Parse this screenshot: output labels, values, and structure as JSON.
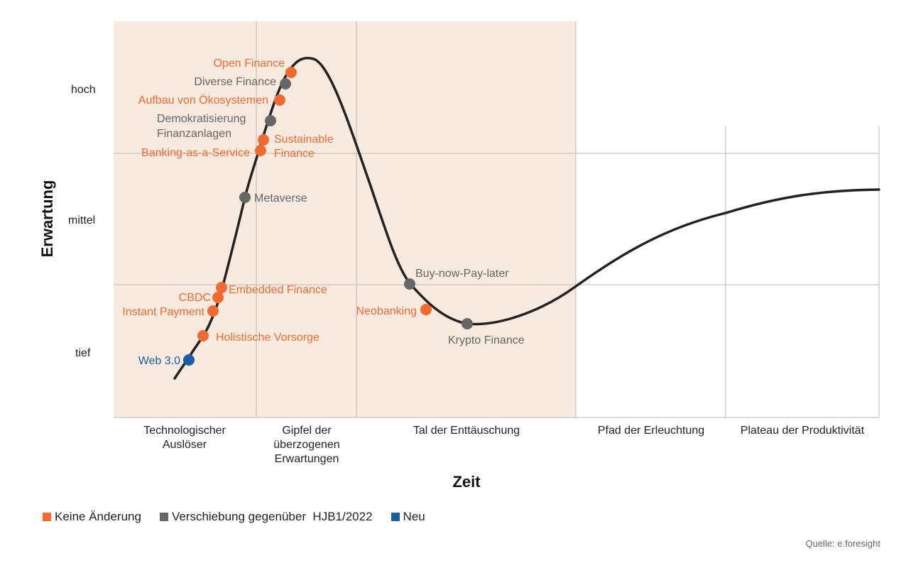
{
  "chart_data": {
    "type": "hype-cycle",
    "xlabel": "Zeit",
    "ylabel": "Erwartung",
    "y_levels": [
      "hoch",
      "mittel",
      "tief"
    ],
    "phases": [
      "Technologischer Auslöser",
      "Gipfel der überzogenen Erwartungen",
      "Tal der Enttäuschung",
      "Pfad der Erleuchtung",
      "Plateau der Produktivität"
    ],
    "points": [
      {
        "name": "Web 3.0",
        "status": "Neu"
      },
      {
        "name": "Holistische Vorsorge",
        "status": "Keine Änderung"
      },
      {
        "name": "Instant Payment",
        "status": "Keine Änderung"
      },
      {
        "name": "CBDC",
        "status": "Keine Änderung"
      },
      {
        "name": "Embedded Finance",
        "status": "Keine Änderung"
      },
      {
        "name": "Metaverse",
        "status": "Verschiebung"
      },
      {
        "name": "Banking-as-a-Service",
        "status": "Keine Änderung"
      },
      {
        "name": "Sustainable Finance",
        "status": "Keine Änderung"
      },
      {
        "name": "Demokratisierung Finanzanlagen",
        "status": "Verschiebung"
      },
      {
        "name": "Aufbau von Ökosystemen",
        "status": "Keine Änderung"
      },
      {
        "name": "Diverse Finance",
        "status": "Verschiebung"
      },
      {
        "name": "Open Finance",
        "status": "Keine Änderung"
      },
      {
        "name": "Buy-now-Pay-later",
        "status": "Verschiebung"
      },
      {
        "name": "Neobanking",
        "status": "Keine Änderung"
      },
      {
        "name": "Krypto Finance",
        "status": "Verschiebung"
      }
    ],
    "legend": [
      {
        "label": "Keine Änderung",
        "color": "#f26a30"
      },
      {
        "label": "Verschiebung gegenüber  HJB1/2022",
        "color": "#666666"
      },
      {
        "label": "Neu",
        "color": "#1a5ea8"
      }
    ],
    "colors": {
      "Keine Änderung": "#f26a30",
      "Verschiebung": "#666666",
      "Neu": "#1a5ea8",
      "background_shade": "#f8eadf"
    }
  },
  "source": "Quelle: e.foresight"
}
